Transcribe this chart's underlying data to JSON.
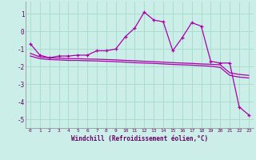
{
  "xlabel": "Windchill (Refroidissement éolien,°C)",
  "background_color": "#cceee8",
  "grid_color": "#aaddcc",
  "line_color": "#aa00aa",
  "spine_color": "#888888",
  "xlim": [
    -0.5,
    23.5
  ],
  "ylim": [
    -5.5,
    1.7
  ],
  "yticks": [
    -5,
    -4,
    -3,
    -2,
    -1,
    0,
    1
  ],
  "xticks": [
    0,
    1,
    2,
    3,
    4,
    5,
    6,
    7,
    8,
    9,
    10,
    11,
    12,
    13,
    14,
    15,
    16,
    17,
    18,
    19,
    20,
    21,
    22,
    23
  ],
  "series1_x": [
    0,
    1,
    2,
    3,
    4,
    5,
    6,
    7,
    8,
    9,
    10,
    11,
    12,
    13,
    14,
    15,
    16,
    17,
    18,
    19,
    20,
    21,
    22,
    23
  ],
  "series1_y": [
    -0.7,
    -1.35,
    -1.5,
    -1.4,
    -1.4,
    -1.35,
    -1.35,
    -1.1,
    -1.1,
    -1.0,
    -0.3,
    0.2,
    1.1,
    0.65,
    0.55,
    -1.1,
    -0.35,
    0.5,
    0.3,
    -1.7,
    -1.8,
    -1.8,
    -4.3,
    -4.75
  ],
  "series2_x": [
    0,
    1,
    2,
    3,
    4,
    5,
    6,
    7,
    8,
    9,
    10,
    11,
    12,
    13,
    14,
    15,
    16,
    17,
    18,
    19,
    20,
    21,
    22,
    23
  ],
  "series2_y": [
    -1.25,
    -1.45,
    -1.5,
    -1.52,
    -1.55,
    -1.55,
    -1.57,
    -1.58,
    -1.6,
    -1.62,
    -1.65,
    -1.67,
    -1.7,
    -1.72,
    -1.75,
    -1.78,
    -1.8,
    -1.82,
    -1.85,
    -1.87,
    -1.9,
    -2.35,
    -2.45,
    -2.5
  ],
  "series3_x": [
    0,
    1,
    2,
    3,
    4,
    5,
    6,
    7,
    8,
    9,
    10,
    11,
    12,
    13,
    14,
    15,
    16,
    17,
    18,
    19,
    20,
    21,
    22,
    23
  ],
  "series3_y": [
    -1.4,
    -1.55,
    -1.6,
    -1.62,
    -1.65,
    -1.65,
    -1.67,
    -1.68,
    -1.7,
    -1.72,
    -1.75,
    -1.78,
    -1.8,
    -1.82,
    -1.85,
    -1.88,
    -1.9,
    -1.92,
    -1.95,
    -1.98,
    -2.05,
    -2.5,
    -2.6,
    -2.65
  ]
}
